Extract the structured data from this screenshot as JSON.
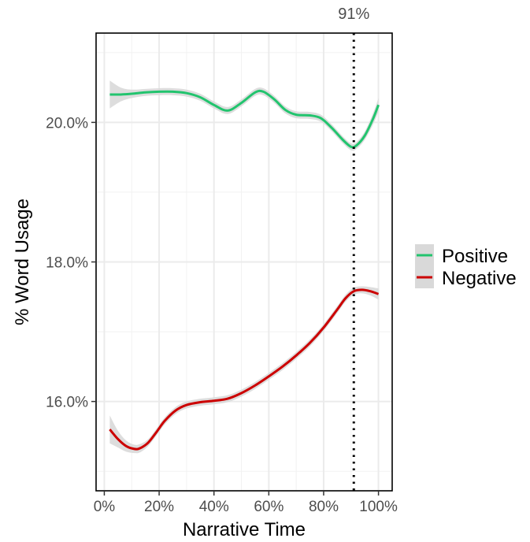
{
  "chart_data": {
    "type": "line",
    "xlabel": "Narrative Time",
    "ylabel": "% Word Usage",
    "xlim": [
      -0.03,
      1.05
    ],
    "ylim": [
      0.1472,
      0.2128
    ],
    "x_ticks": [
      0,
      0.2,
      0.4,
      0.6,
      0.8,
      1.0
    ],
    "x_tick_labels": [
      "0%",
      "20%",
      "40%",
      "60%",
      "80%",
      "100%"
    ],
    "y_ticks": [
      0.16,
      0.18,
      0.2
    ],
    "y_tick_labels": [
      "16.0%",
      "18.0%",
      "20.0%"
    ],
    "grid": true,
    "legend_position": "right",
    "vline": {
      "x": 0.91,
      "label": "91%",
      "style": "dotted"
    },
    "series": [
      {
        "name": "Positive",
        "color": "#22c46e",
        "x": [
          0.02,
          0.06,
          0.1,
          0.15,
          0.2,
          0.25,
          0.3,
          0.35,
          0.4,
          0.45,
          0.5,
          0.55,
          0.58,
          0.62,
          0.66,
          0.7,
          0.75,
          0.79,
          0.83,
          0.87,
          0.9,
          0.92,
          0.95,
          0.98,
          1.0
        ],
        "y": [
          0.204,
          0.204,
          0.2041,
          0.2043,
          0.2044,
          0.2044,
          0.2042,
          0.2036,
          0.2025,
          0.2017,
          0.2028,
          0.2043,
          0.2044,
          0.2033,
          0.2018,
          0.2011,
          0.201,
          0.2006,
          0.1992,
          0.1975,
          0.1965,
          0.1967,
          0.1981,
          0.2005,
          0.2025
        ],
        "ci_halfwidth": [
          0.002,
          0.001,
          0.0006,
          0.0005,
          0.0005,
          0.0005,
          0.0005,
          0.0005,
          0.0005,
          0.0005,
          0.0005,
          0.0005,
          0.0005,
          0.0005,
          0.0005,
          0.0005,
          0.0005,
          0.0005,
          0.0005,
          0.0005,
          0.0005,
          0.0005,
          0.0006,
          0.0008,
          0.001
        ]
      },
      {
        "name": "Negative",
        "color": "#cc0000",
        "x": [
          0.02,
          0.05,
          0.08,
          0.11,
          0.13,
          0.16,
          0.19,
          0.22,
          0.26,
          0.3,
          0.35,
          0.4,
          0.45,
          0.5,
          0.55,
          0.6,
          0.65,
          0.7,
          0.75,
          0.8,
          0.85,
          0.88,
          0.91,
          0.94,
          0.97,
          1.0
        ],
        "y": [
          0.156,
          0.1546,
          0.1536,
          0.1532,
          0.1533,
          0.1541,
          0.1556,
          0.1572,
          0.1587,
          0.1595,
          0.1599,
          0.1601,
          0.1604,
          0.1612,
          0.1623,
          0.1636,
          0.165,
          0.1666,
          0.1684,
          0.1706,
          0.1732,
          0.1748,
          0.1758,
          0.176,
          0.1758,
          0.1754
        ],
        "ci_halfwidth": [
          0.002,
          0.0012,
          0.0008,
          0.0006,
          0.0006,
          0.0005,
          0.0005,
          0.0005,
          0.0005,
          0.0005,
          0.0005,
          0.0005,
          0.0005,
          0.0005,
          0.0005,
          0.0005,
          0.0005,
          0.0005,
          0.0005,
          0.0005,
          0.0005,
          0.0005,
          0.0005,
          0.0005,
          0.0006,
          0.0008
        ]
      }
    ]
  }
}
